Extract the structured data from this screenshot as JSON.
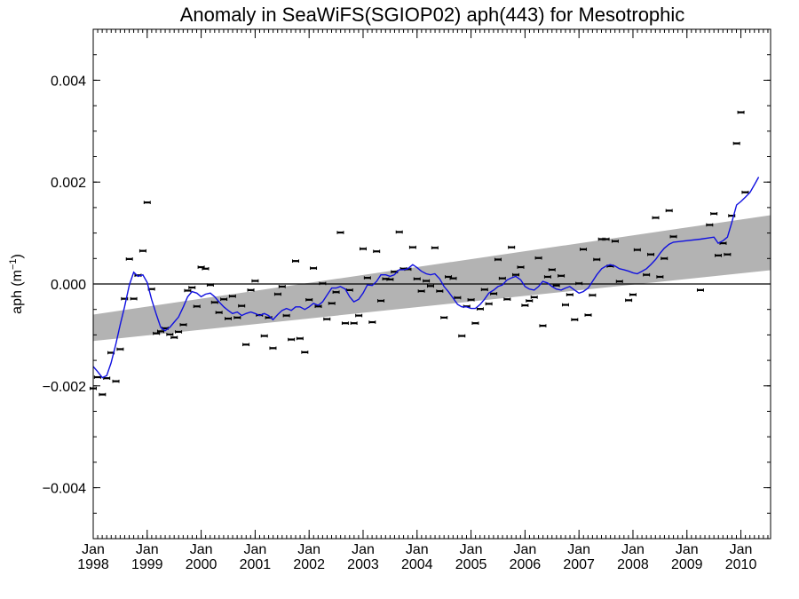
{
  "chart_data": {
    "type": "scatter",
    "title": "Anomaly in SeaWiFS(SGIOP02) aph(443) for Mesotrophic",
    "ylabel": "aph (m",
    "ylabel_sup": "−1",
    "ylabel_suffix": ")",
    "ylim": [
      -0.005,
      0.005
    ],
    "xlim": [
      1998.0,
      2010.55
    ],
    "y_ticks": [
      {
        "value": 0.004,
        "label": "0.004"
      },
      {
        "value": 0.002,
        "label": "0.002"
      },
      {
        "value": 0.0,
        "label": "0.000"
      },
      {
        "value": -0.002,
        "label": "−0.002"
      },
      {
        "value": -0.004,
        "label": "−0.004"
      }
    ],
    "x_ticks": [
      {
        "value": 1998,
        "line1": "Jan",
        "line2": "1998"
      },
      {
        "value": 1999,
        "line1": "Jan",
        "line2": "1999"
      },
      {
        "value": 2000,
        "line1": "Jan",
        "line2": "2000"
      },
      {
        "value": 2001,
        "line1": "Jan",
        "line2": "2001"
      },
      {
        "value": 2002,
        "line1": "Jan",
        "line2": "2002"
      },
      {
        "value": 2003,
        "line1": "Jan",
        "line2": "2003"
      },
      {
        "value": 2004,
        "line1": "Jan",
        "line2": "2004"
      },
      {
        "value": 2005,
        "line1": "Jan",
        "line2": "2005"
      },
      {
        "value": 2006,
        "line1": "Jan",
        "line2": "2006"
      },
      {
        "value": 2007,
        "line1": "Jan",
        "line2": "2007"
      },
      {
        "value": 2008,
        "line1": "Jan",
        "line2": "2008"
      },
      {
        "value": 2009,
        "line1": "Jan",
        "line2": "2009"
      },
      {
        "value": 2010,
        "line1": "Jan",
        "line2": "2010"
      }
    ],
    "trend_band": {
      "start": {
        "x": 1998.0,
        "lower": -0.00112,
        "upper": -0.0006
      },
      "end": {
        "x": 2010.55,
        "lower": 0.00027,
        "upper": 0.00135
      }
    },
    "zero_line": 0.0,
    "points": [
      [
        1998.0,
        -0.00205
      ],
      [
        1998.08,
        -0.00183
      ],
      [
        1998.17,
        -0.00217
      ],
      [
        1998.25,
        -0.00185
      ],
      [
        1998.33,
        -0.00135
      ],
      [
        1998.42,
        -0.00191
      ],
      [
        1998.5,
        -0.00128
      ],
      [
        1998.58,
        -0.00029
      ],
      [
        1998.67,
        0.00049
      ],
      [
        1998.75,
        -0.00029
      ],
      [
        1998.83,
        0.00017
      ],
      [
        1998.92,
        0.00065
      ],
      [
        1999.0,
        0.0016
      ],
      [
        1999.08,
        -0.0001
      ],
      [
        1999.17,
        -0.00097
      ],
      [
        1999.25,
        -0.00093
      ],
      [
        1999.33,
        -0.00087
      ],
      [
        1999.42,
        -0.00099
      ],
      [
        1999.5,
        -0.00105
      ],
      [
        1999.58,
        -0.00094
      ],
      [
        1999.67,
        -0.0008
      ],
      [
        1999.75,
        -0.00013
      ],
      [
        1999.83,
        -7e-05
      ],
      [
        1999.92,
        -0.00044
      ],
      [
        2000.0,
        0.00033
      ],
      [
        2000.08,
        0.0003
      ],
      [
        2000.17,
        -2e-05
      ],
      [
        2000.25,
        -0.00036
      ],
      [
        2000.33,
        -0.00056
      ],
      [
        2000.42,
        -0.0003
      ],
      [
        2000.5,
        -0.00068
      ],
      [
        2000.58,
        -0.00024
      ],
      [
        2000.67,
        -0.00066
      ],
      [
        2000.75,
        -0.00043
      ],
      [
        2000.83,
        -0.00119
      ],
      [
        2000.92,
        -0.00012
      ],
      [
        2001.0,
        6e-05
      ],
      [
        2001.08,
        -0.00061
      ],
      [
        2001.17,
        -0.00102
      ],
      [
        2001.25,
        -0.00066
      ],
      [
        2001.33,
        -0.00126
      ],
      [
        2001.42,
        -0.0002
      ],
      [
        2001.5,
        -5e-05
      ],
      [
        2001.58,
        -0.00062
      ],
      [
        2001.67,
        -0.00109
      ],
      [
        2001.75,
        0.00045
      ],
      [
        2001.83,
        -0.00107
      ],
      [
        2001.92,
        -0.00134
      ],
      [
        2002.0,
        -0.00031
      ],
      [
        2002.08,
        0.00031
      ],
      [
        2002.17,
        -0.00044
      ],
      [
        2002.25,
        1e-05
      ],
      [
        2002.33,
        -0.00069
      ],
      [
        2002.42,
        -0.00038
      ],
      [
        2002.5,
        -0.00016
      ],
      [
        2002.58,
        0.00101
      ],
      [
        2002.67,
        -0.00077
      ],
      [
        2002.75,
        -0.00012
      ],
      [
        2002.83,
        -0.00077
      ],
      [
        2002.92,
        -0.00062
      ],
      [
        2003.0,
        0.00069
      ],
      [
        2003.08,
        0.00012
      ],
      [
        2003.17,
        -0.00075
      ],
      [
        2003.25,
        0.00064
      ],
      [
        2003.33,
        -0.00033
      ],
      [
        2003.42,
        0.0001
      ],
      [
        2003.5,
        9e-05
      ],
      [
        2003.58,
        0.00024
      ],
      [
        2003.67,
        0.00102
      ],
      [
        2003.75,
        0.0003
      ],
      [
        2003.83,
        0.00029
      ],
      [
        2003.92,
        0.00072
      ],
      [
        2004.0,
        0.0001
      ],
      [
        2004.08,
        -0.00014
      ],
      [
        2004.17,
        6e-05
      ],
      [
        2004.25,
        -4e-05
      ],
      [
        2004.33,
        0.00071
      ],
      [
        2004.42,
        -0.00014
      ],
      [
        2004.5,
        -0.00066
      ],
      [
        2004.58,
        0.00014
      ],
      [
        2004.67,
        0.00011
      ],
      [
        2004.75,
        -0.00027
      ],
      [
        2004.83,
        -0.00102
      ],
      [
        2004.92,
        -0.00044
      ],
      [
        2005.0,
        -0.00031
      ],
      [
        2005.08,
        -0.00077
      ],
      [
        2005.17,
        -0.00049
      ],
      [
        2005.25,
        -0.00011
      ],
      [
        2005.33,
        -0.00039
      ],
      [
        2005.42,
        -0.00019
      ],
      [
        2005.5,
        0.00048
      ],
      [
        2005.58,
        0.00011
      ],
      [
        2005.67,
        -0.0003
      ],
      [
        2005.75,
        0.00072
      ],
      [
        2005.83,
        0.00018
      ],
      [
        2005.92,
        0.00033
      ],
      [
        2006.0,
        -0.00042
      ],
      [
        2006.08,
        -0.00033
      ],
      [
        2006.17,
        -0.00026
      ],
      [
        2006.25,
        0.00051
      ],
      [
        2006.33,
        -0.00082
      ],
      [
        2006.42,
        0.00014
      ],
      [
        2006.5,
        0.00028
      ],
      [
        2006.58,
        -3e-05
      ],
      [
        2006.67,
        0.00016
      ],
      [
        2006.75,
        -0.00041
      ],
      [
        2006.83,
        -0.00021
      ],
      [
        2006.92,
        -0.0007
      ],
      [
        2007.0,
        1e-05
      ],
      [
        2007.08,
        0.00068
      ],
      [
        2007.17,
        -0.00061
      ],
      [
        2007.25,
        -0.00022
      ],
      [
        2007.33,
        0.00048
      ],
      [
        2007.42,
        0.00088
      ],
      [
        2007.5,
        0.00088
      ],
      [
        2007.58,
        0.00035
      ],
      [
        2007.67,
        0.00084
      ],
      [
        2007.75,
        5e-05
      ],
      [
        2007.92,
        -0.00032
      ],
      [
        2008.0,
        -0.00021
      ],
      [
        2008.08,
        0.00067
      ],
      [
        2008.25,
        0.00018
      ],
      [
        2008.33,
        0.00058
      ],
      [
        2008.42,
        0.0013
      ],
      [
        2008.5,
        0.00014
      ],
      [
        2008.58,
        0.0005
      ],
      [
        2008.67,
        0.00144
      ],
      [
        2008.75,
        0.00093
      ],
      [
        2009.25,
        -0.00012
      ],
      [
        2009.42,
        0.00116
      ],
      [
        2009.5,
        0.00138
      ],
      [
        2009.58,
        0.00056
      ],
      [
        2009.67,
        0.0008
      ],
      [
        2009.75,
        0.00058
      ],
      [
        2009.83,
        0.00134
      ],
      [
        2009.92,
        0.00276
      ],
      [
        2010.0,
        0.00337
      ],
      [
        2010.08,
        0.0018
      ]
    ],
    "smooth_line": [
      [
        1998.0,
        -0.00162
      ],
      [
        1998.08,
        -0.00172
      ],
      [
        1998.17,
        -0.00184
      ],
      [
        1998.25,
        -0.0018
      ],
      [
        1998.33,
        -0.00155
      ],
      [
        1998.42,
        -0.00118
      ],
      [
        1998.5,
        -0.0008
      ],
      [
        1998.58,
        -0.00045
      ],
      [
        1998.67,
        -2e-05
      ],
      [
        1998.75,
        0.00023
      ],
      [
        1998.83,
        0.00015
      ],
      [
        1998.92,
        0.00018
      ],
      [
        1999.0,
        3e-05
      ],
      [
        1999.08,
        -0.0003
      ],
      [
        1999.17,
        -0.0006
      ],
      [
        1999.25,
        -0.00085
      ],
      [
        1999.33,
        -0.00092
      ],
      [
        1999.42,
        -0.00085
      ],
      [
        1999.5,
        -0.00075
      ],
      [
        1999.58,
        -0.00065
      ],
      [
        1999.67,
        -0.00045
      ],
      [
        1999.75,
        -0.00025
      ],
      [
        1999.83,
        -0.00015
      ],
      [
        1999.92,
        -0.00018
      ],
      [
        2000.0,
        -0.00025
      ],
      [
        2000.08,
        -0.0002
      ],
      [
        2000.17,
        -0.00018
      ],
      [
        2000.25,
        -0.00025
      ],
      [
        2000.33,
        -0.00035
      ],
      [
        2000.42,
        -0.00045
      ],
      [
        2000.5,
        -0.00052
      ],
      [
        2000.58,
        -0.00058
      ],
      [
        2000.67,
        -0.00055
      ],
      [
        2000.75,
        -0.00062
      ],
      [
        2000.83,
        -0.00058
      ],
      [
        2000.92,
        -0.00055
      ],
      [
        2001.0,
        -0.00058
      ],
      [
        2001.08,
        -0.00062
      ],
      [
        2001.17,
        -0.00058
      ],
      [
        2001.25,
        -0.00062
      ],
      [
        2001.33,
        -0.0007
      ],
      [
        2001.42,
        -0.0006
      ],
      [
        2001.5,
        -0.00052
      ],
      [
        2001.58,
        -0.00048
      ],
      [
        2001.67,
        -0.00052
      ],
      [
        2001.75,
        -0.00045
      ],
      [
        2001.83,
        -0.00045
      ],
      [
        2001.92,
        -0.0005
      ],
      [
        2002.0,
        -0.00045
      ],
      [
        2002.08,
        -0.00038
      ],
      [
        2002.17,
        -0.00042
      ],
      [
        2002.25,
        -0.00035
      ],
      [
        2002.33,
        -0.00022
      ],
      [
        2002.42,
        -8e-05
      ],
      [
        2002.5,
        -8e-05
      ],
      [
        2002.58,
        -5e-05
      ],
      [
        2002.67,
        -0.0001
      ],
      [
        2002.75,
        -0.00025
      ],
      [
        2002.83,
        -0.00035
      ],
      [
        2002.92,
        -0.0003
      ],
      [
        2003.0,
        -0.00018
      ],
      [
        2003.08,
        -2e-05
      ],
      [
        2003.17,
        -3e-05
      ],
      [
        2003.25,
        5e-05
      ],
      [
        2003.33,
        0.00018
      ],
      [
        2003.42,
        0.00018
      ],
      [
        2003.5,
        0.00015
      ],
      [
        2003.58,
        0.00018
      ],
      [
        2003.67,
        0.00028
      ],
      [
        2003.75,
        0.00028
      ],
      [
        2003.83,
        0.0003
      ],
      [
        2003.92,
        0.00038
      ],
      [
        2004.0,
        0.00032
      ],
      [
        2004.08,
        0.00025
      ],
      [
        2004.17,
        0.0002
      ],
      [
        2004.25,
        0.00018
      ],
      [
        2004.33,
        0.0002
      ],
      [
        2004.42,
        0.0001
      ],
      [
        2004.5,
        -5e-05
      ],
      [
        2004.58,
        -0.00015
      ],
      [
        2004.67,
        -0.00028
      ],
      [
        2004.75,
        -0.0004
      ],
      [
        2004.83,
        -0.00045
      ],
      [
        2004.92,
        -0.00045
      ],
      [
        2005.0,
        -0.00048
      ],
      [
        2005.08,
        -0.00048
      ],
      [
        2005.17,
        -0.0004
      ],
      [
        2005.25,
        -0.0003
      ],
      [
        2005.33,
        -0.00018
      ],
      [
        2005.42,
        -0.00012
      ],
      [
        2005.5,
        -5e-05
      ],
      [
        2005.58,
        -2e-05
      ],
      [
        2005.67,
        8e-05
      ],
      [
        2005.75,
        0.00012
      ],
      [
        2005.83,
        0.00015
      ],
      [
        2005.92,
        8e-05
      ],
      [
        2006.0,
        -5e-05
      ],
      [
        2006.08,
        -0.0001
      ],
      [
        2006.17,
        -0.00012
      ],
      [
        2006.25,
        -5e-05
      ],
      [
        2006.33,
        5e-05
      ],
      [
        2006.42,
        2e-05
      ],
      [
        2006.5,
        -5e-05
      ],
      [
        2006.58,
        -0.0001
      ],
      [
        2006.67,
        -0.00012
      ],
      [
        2006.75,
        -8e-05
      ],
      [
        2006.83,
        -5e-05
      ],
      [
        2006.92,
        -0.00012
      ],
      [
        2007.0,
        -0.00018
      ],
      [
        2007.08,
        -0.00015
      ],
      [
        2007.17,
        -8e-05
      ],
      [
        2007.25,
        5e-05
      ],
      [
        2007.33,
        0.00018
      ],
      [
        2007.42,
        0.0003
      ],
      [
        2007.5,
        0.00035
      ],
      [
        2007.58,
        0.00038
      ],
      [
        2007.67,
        0.00035
      ],
      [
        2007.75,
        0.0003
      ],
      [
        2007.83,
        0.00028
      ],
      [
        2007.92,
        0.00025
      ],
      [
        2008.0,
        0.00022
      ],
      [
        2008.08,
        0.0002
      ],
      [
        2008.17,
        0.00025
      ],
      [
        2008.25,
        0.0003
      ],
      [
        2008.33,
        0.00038
      ],
      [
        2008.42,
        0.00048
      ],
      [
        2008.5,
        0.0006
      ],
      [
        2008.58,
        0.0007
      ],
      [
        2008.67,
        0.00078
      ],
      [
        2008.75,
        0.00082
      ],
      [
        2009.0,
        0.00085
      ],
      [
        2009.25,
        0.00088
      ],
      [
        2009.5,
        0.00092
      ],
      [
        2009.58,
        0.0008
      ],
      [
        2009.67,
        0.00085
      ],
      [
        2009.75,
        0.00092
      ],
      [
        2009.83,
        0.0012
      ],
      [
        2009.92,
        0.00155
      ],
      [
        2010.0,
        0.00162
      ],
      [
        2010.08,
        0.0017
      ],
      [
        2010.17,
        0.0018
      ],
      [
        2010.25,
        0.00195
      ],
      [
        2010.33,
        0.0021
      ]
    ],
    "colors": {
      "band": "#b3b3b3",
      "line": "#1010e0",
      "points": "#000000",
      "axes": "#000000"
    }
  }
}
